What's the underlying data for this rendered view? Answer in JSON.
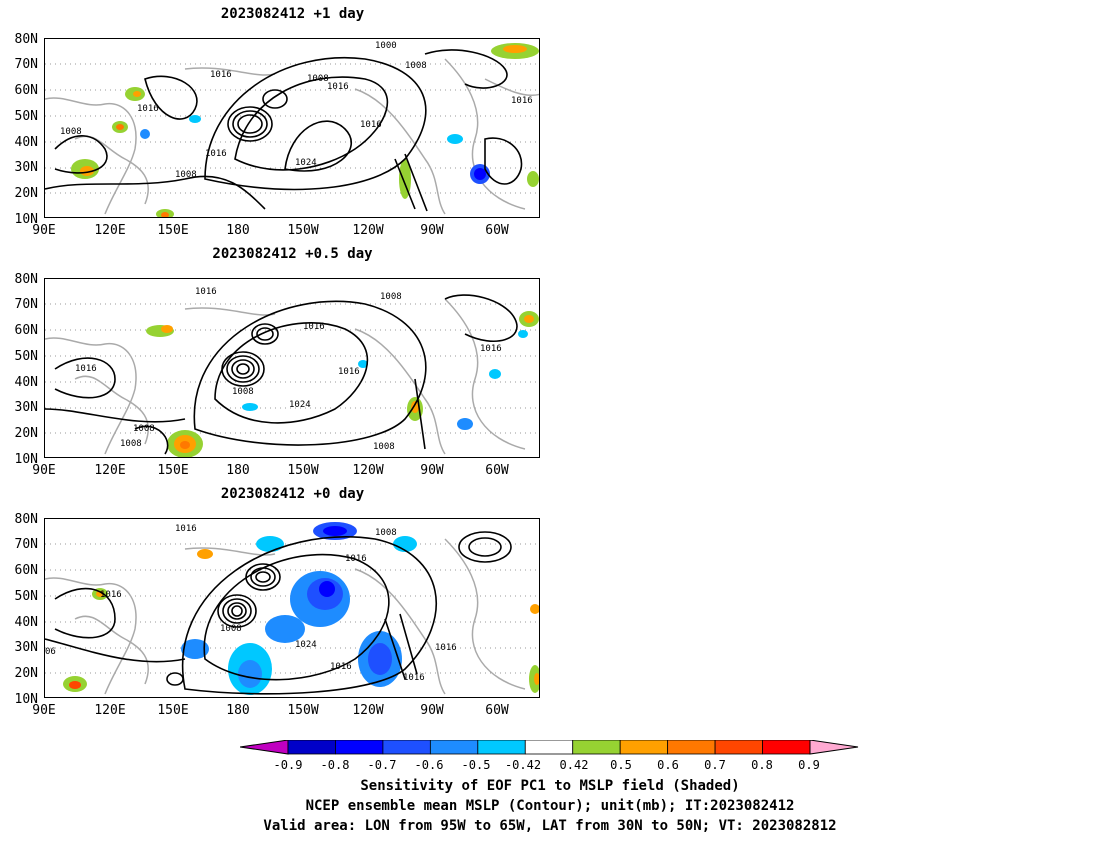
{
  "panels": [
    {
      "title": "2023082412  +1 day",
      "contour_labels": [
        {
          "text": "1000"
        },
        {
          "text": "1008"
        },
        {
          "text": "1016"
        },
        {
          "text": "1008"
        },
        {
          "text": "1016"
        },
        {
          "text": "1016"
        },
        {
          "text": "1008"
        },
        {
          "text": "1016"
        },
        {
          "text": "1016"
        },
        {
          "text": "1008"
        },
        {
          "text": "1024"
        },
        {
          "text": "1016"
        }
      ]
    },
    {
      "title": "2023082412  +0.5 day",
      "contour_labels": [
        {
          "text": "1016"
        },
        {
          "text": "1008"
        },
        {
          "text": "1016"
        },
        {
          "text": "1016"
        },
        {
          "text": "1016"
        },
        {
          "text": "1016"
        },
        {
          "text": "1008"
        },
        {
          "text": "1024"
        },
        {
          "text": "1008"
        },
        {
          "text": "1008"
        },
        {
          "text": "1008"
        }
      ]
    },
    {
      "title": "2023082412  +0 day",
      "contour_labels": [
        {
          "text": "1016"
        },
        {
          "text": "1008"
        },
        {
          "text": "1016"
        },
        {
          "text": "1016"
        },
        {
          "text": "1008"
        },
        {
          "text": "1024"
        },
        {
          "text": "1016"
        },
        {
          "text": "1016"
        },
        {
          "text": "1016"
        },
        {
          "text": "06"
        }
      ]
    }
  ],
  "y_axis": {
    "panel1": [
      "80N",
      "70N",
      "60N",
      "50N",
      "40N",
      "30N",
      "20N",
      "10N"
    ],
    "panel2": [
      "80N",
      "70N",
      "60N",
      "50N",
      "40N",
      "30N",
      "20N",
      "10N"
    ],
    "panel3": [
      "80N",
      "70N",
      "60N",
      "50N",
      "40N",
      "30N",
      "20N",
      "10N"
    ]
  },
  "x_axis": [
    "90E",
    "120E",
    "150E",
    "180",
    "150W",
    "120W",
    "90W",
    "60W"
  ],
  "colorbar": {
    "ticks": [
      "-0.9",
      "-0.8",
      "-0.7",
      "-0.6",
      "-0.5",
      "-0.42",
      "0.42",
      "0.5",
      "0.6",
      "0.7",
      "0.8",
      "0.9"
    ],
    "colors": [
      "#c000c0",
      "#0000c8",
      "#0000ff",
      "#1e50ff",
      "#1e8cff",
      "#00c8ff",
      "#ffffff",
      "#96d232",
      "#ffa000",
      "#ff7800",
      "#ff4600",
      "#ff0000",
      "#ffaad2"
    ]
  },
  "captions": [
    "Sensitivity of EOF PC1 to MSLP field (Shaded)",
    "NCEP ensemble mean MSLP (Contour); unit(mb); IT:2023082412",
    "Valid area: LON from 95W to 65W, LAT from 30N to 50N; VT: 2023082812"
  ]
}
